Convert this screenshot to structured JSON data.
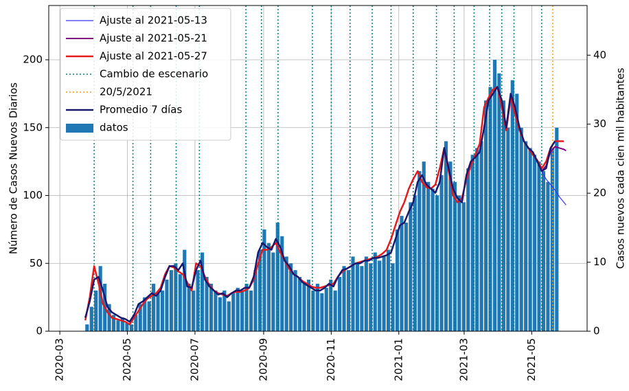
{
  "chart_data": {
    "type": "bar",
    "ylabel": "Número de Casos Nuevos Diarios",
    "y2label": "Casos nuevos cada cien mil habitantes",
    "xlim": [
      "2020-02-20",
      "2021-06-20"
    ],
    "xticks": [
      "2020-03",
      "2020-05",
      "2020-07",
      "2020-09",
      "2020-11",
      "2021-01",
      "2021-03",
      "2021-05"
    ],
    "ylim": [
      0,
      240
    ],
    "yticks": [
      0,
      50,
      100,
      150,
      200
    ],
    "y2lim": [
      0,
      47.2
    ],
    "y2ticks": [
      0,
      10,
      20,
      30,
      40
    ],
    "grid": true,
    "legend": "upper left",
    "bars": {
      "name": "datos",
      "color": "#1f77b4",
      "x": [
        "2020-03-24",
        "2020-03-28",
        "2020-04-01",
        "2020-04-05",
        "2020-04-09",
        "2020-04-13",
        "2020-04-17",
        "2020-04-21",
        "2020-04-25",
        "2020-04-29",
        "2020-05-03",
        "2020-05-07",
        "2020-05-11",
        "2020-05-15",
        "2020-05-19",
        "2020-05-23",
        "2020-05-27",
        "2020-05-31",
        "2020-06-04",
        "2020-06-08",
        "2020-06-12",
        "2020-06-16",
        "2020-06-20",
        "2020-06-24",
        "2020-06-28",
        "2020-07-02",
        "2020-07-06",
        "2020-07-10",
        "2020-07-14",
        "2020-07-18",
        "2020-07-22",
        "2020-07-26",
        "2020-07-30",
        "2020-08-03",
        "2020-08-07",
        "2020-08-11",
        "2020-08-15",
        "2020-08-19",
        "2020-08-23",
        "2020-08-27",
        "2020-08-31",
        "2020-09-04",
        "2020-09-08",
        "2020-09-12",
        "2020-09-16",
        "2020-09-20",
        "2020-09-24",
        "2020-09-28",
        "2020-10-02",
        "2020-10-06",
        "2020-10-10",
        "2020-10-14",
        "2020-10-18",
        "2020-10-22",
        "2020-10-26",
        "2020-10-30",
        "2020-11-03",
        "2020-11-07",
        "2020-11-11",
        "2020-11-15",
        "2020-11-19",
        "2020-11-23",
        "2020-11-27",
        "2020-12-01",
        "2020-12-05",
        "2020-12-09",
        "2020-12-13",
        "2020-12-17",
        "2020-12-21",
        "2020-12-25",
        "2020-12-29",
        "2021-01-02",
        "2021-01-06",
        "2021-01-10",
        "2021-01-14",
        "2021-01-18",
        "2021-01-22",
        "2021-01-26",
        "2021-01-30",
        "2021-02-03",
        "2021-02-07",
        "2021-02-11",
        "2021-02-15",
        "2021-02-19",
        "2021-02-23",
        "2021-02-27",
        "2021-03-03",
        "2021-03-07",
        "2021-03-11",
        "2021-03-15",
        "2021-03-19",
        "2021-03-23",
        "2021-03-27",
        "2021-03-31",
        "2021-04-04",
        "2021-04-08",
        "2021-04-12",
        "2021-04-16",
        "2021-04-20",
        "2021-04-24",
        "2021-04-28",
        "2021-05-02",
        "2021-05-06",
        "2021-05-10",
        "2021-05-14",
        "2021-05-18",
        "2021-05-22"
      ],
      "values": [
        5,
        18,
        30,
        48,
        35,
        20,
        12,
        8,
        10,
        6,
        5,
        12,
        20,
        25,
        22,
        35,
        28,
        30,
        38,
        45,
        50,
        42,
        60,
        35,
        30,
        45,
        58,
        40,
        35,
        30,
        25,
        30,
        22,
        28,
        32,
        30,
        35,
        30,
        45,
        60,
        75,
        65,
        58,
        80,
        70,
        55,
        50,
        45,
        40,
        35,
        38,
        30,
        35,
        28,
        32,
        38,
        30,
        40,
        48,
        45,
        55,
        50,
        48,
        55,
        50,
        58,
        52,
        55,
        60,
        50,
        75,
        85,
        80,
        95,
        100,
        118,
        125,
        110,
        105,
        100,
        115,
        140,
        125,
        110,
        100,
        95,
        120,
        130,
        135,
        140,
        170,
        180,
        200,
        190,
        170,
        150,
        185,
        175,
        150,
        140,
        135,
        130,
        125,
        118,
        110,
        135,
        150
      ]
    },
    "series": [
      {
        "name": "Ajuste al 2021-05-13",
        "color": "#3333ff",
        "width": 1.2,
        "x": [
          "2021-05-06",
          "2021-05-10",
          "2021-05-14",
          "2021-05-18",
          "2021-05-22",
          "2021-05-26",
          "2021-05-30",
          "2021-06-01"
        ],
        "values": [
          125,
          118,
          112,
          108,
          104,
          99,
          95,
          93
        ]
      },
      {
        "name": "Ajuste al 2021-05-21",
        "color": "#800080",
        "width": 2,
        "x": [
          "2021-05-10",
          "2021-05-14",
          "2021-05-18",
          "2021-05-22",
          "2021-05-26",
          "2021-05-30",
          "2021-06-01"
        ],
        "values": [
          118,
          122,
          132,
          136,
          135,
          134,
          133
        ]
      },
      {
        "name": "Ajuste al 2021-05-27",
        "color": "#e41a1c",
        "width": 2.5,
        "x": [
          "2020-03-24",
          "2020-03-28",
          "2020-04-01",
          "2020-04-05",
          "2020-04-09",
          "2020-04-13",
          "2020-04-17",
          "2020-04-21",
          "2020-04-25",
          "2020-04-29",
          "2020-05-03",
          "2020-05-07",
          "2020-05-11",
          "2020-05-15",
          "2020-05-19",
          "2020-05-23",
          "2020-05-27",
          "2020-05-31",
          "2020-06-04",
          "2020-06-08",
          "2020-06-12",
          "2020-06-16",
          "2020-06-20",
          "2020-06-24",
          "2020-06-28",
          "2020-07-02",
          "2020-07-06",
          "2020-07-10",
          "2020-07-14",
          "2020-07-18",
          "2020-07-22",
          "2020-07-26",
          "2020-07-30",
          "2020-08-03",
          "2020-08-07",
          "2020-08-11",
          "2020-08-15",
          "2020-08-19",
          "2020-08-23",
          "2020-08-27",
          "2020-08-31",
          "2020-09-04",
          "2020-09-08",
          "2020-09-12",
          "2020-09-16",
          "2020-09-20",
          "2020-09-24",
          "2020-09-28",
          "2020-10-02",
          "2020-10-06",
          "2020-10-10",
          "2020-10-14",
          "2020-10-18",
          "2020-10-22",
          "2020-10-26",
          "2020-10-30",
          "2020-11-03",
          "2020-11-07",
          "2020-11-11",
          "2020-11-15",
          "2020-11-19",
          "2020-11-23",
          "2020-11-27",
          "2020-12-01",
          "2020-12-05",
          "2020-12-09",
          "2020-12-13",
          "2020-12-17",
          "2020-12-21",
          "2020-12-25",
          "2020-12-29",
          "2021-01-02",
          "2021-01-06",
          "2021-01-10",
          "2021-01-14",
          "2021-01-18",
          "2021-01-22",
          "2021-01-26",
          "2021-01-30",
          "2021-02-03",
          "2021-02-07",
          "2021-02-11",
          "2021-02-15",
          "2021-02-19",
          "2021-02-23",
          "2021-02-27",
          "2021-03-03",
          "2021-03-07",
          "2021-03-11",
          "2021-03-15",
          "2021-03-19",
          "2021-03-23",
          "2021-03-27",
          "2021-03-31",
          "2021-04-04",
          "2021-04-08",
          "2021-04-12",
          "2021-04-16",
          "2021-04-20",
          "2021-04-24",
          "2021-04-28",
          "2021-05-02",
          "2021-05-06",
          "2021-05-10",
          "2021-05-14",
          "2021-05-18",
          "2021-05-22",
          "2021-05-26",
          "2021-05-30"
        ],
        "values": [
          8,
          25,
          48,
          35,
          20,
          14,
          10,
          9,
          8,
          7,
          5,
          10,
          15,
          20,
          24,
          26,
          28,
          32,
          42,
          48,
          47,
          44,
          42,
          36,
          30,
          50,
          48,
          40,
          34,
          30,
          28,
          27,
          26,
          28,
          29,
          29,
          30,
          32,
          38,
          50,
          60,
          60,
          62,
          65,
          58,
          52,
          46,
          42,
          40,
          37,
          35,
          33,
          32,
          32,
          33,
          34,
          35,
          40,
          44,
          46,
          48,
          50,
          51,
          52,
          53,
          54,
          55,
          57,
          60,
          68,
          78,
          88,
          95,
          105,
          112,
          118,
          110,
          106,
          105,
          108,
          120,
          135,
          118,
          100,
          95,
          98,
          112,
          122,
          130,
          138,
          165,
          172,
          178,
          180,
          165,
          148,
          172,
          160,
          148,
          140,
          135,
          130,
          126,
          120,
          125,
          135,
          140,
          140,
          140
        ]
      },
      {
        "name": "Promedio 7 días",
        "color": "#191970",
        "width": 2.5,
        "x": [
          "2020-03-24",
          "2020-03-28",
          "2020-04-01",
          "2020-04-05",
          "2020-04-09",
          "2020-04-13",
          "2020-04-17",
          "2020-04-21",
          "2020-04-25",
          "2020-04-29",
          "2020-05-03",
          "2020-05-07",
          "2020-05-11",
          "2020-05-15",
          "2020-05-19",
          "2020-05-23",
          "2020-05-27",
          "2020-05-31",
          "2020-06-04",
          "2020-06-08",
          "2020-06-12",
          "2020-06-16",
          "2020-06-20",
          "2020-06-24",
          "2020-06-28",
          "2020-07-02",
          "2020-07-06",
          "2020-07-10",
          "2020-07-14",
          "2020-07-18",
          "2020-07-22",
          "2020-07-26",
          "2020-07-30",
          "2020-08-03",
          "2020-08-07",
          "2020-08-11",
          "2020-08-15",
          "2020-08-19",
          "2020-08-23",
          "2020-08-27",
          "2020-08-31",
          "2020-09-04",
          "2020-09-08",
          "2020-09-12",
          "2020-09-16",
          "2020-09-20",
          "2020-09-24",
          "2020-09-28",
          "2020-10-02",
          "2020-10-06",
          "2020-10-10",
          "2020-10-14",
          "2020-10-18",
          "2020-10-22",
          "2020-10-26",
          "2020-10-30",
          "2020-11-03",
          "2020-11-07",
          "2020-11-11",
          "2020-11-15",
          "2020-11-19",
          "2020-11-23",
          "2020-11-27",
          "2020-12-01",
          "2020-12-05",
          "2020-12-09",
          "2020-12-13",
          "2020-12-17",
          "2020-12-21",
          "2020-12-25",
          "2020-12-29",
          "2021-01-02",
          "2021-01-06",
          "2021-01-10",
          "2021-01-14",
          "2021-01-18",
          "2021-01-22",
          "2021-01-26",
          "2021-01-30",
          "2021-02-03",
          "2021-02-07",
          "2021-02-11",
          "2021-02-15",
          "2021-02-19",
          "2021-02-23",
          "2021-02-27",
          "2021-03-03",
          "2021-03-07",
          "2021-03-11",
          "2021-03-15",
          "2021-03-19",
          "2021-03-23",
          "2021-03-27",
          "2021-03-31",
          "2021-04-04",
          "2021-04-08",
          "2021-04-12",
          "2021-04-16",
          "2021-04-20",
          "2021-04-24",
          "2021-04-28",
          "2021-05-02",
          "2021-05-06",
          "2021-05-10",
          "2021-05-14",
          "2021-05-18",
          "2021-05-22"
        ],
        "values": [
          10,
          22,
          38,
          40,
          30,
          18,
          14,
          12,
          10,
          9,
          7,
          12,
          20,
          22,
          25,
          28,
          26,
          30,
          40,
          48,
          48,
          45,
          50,
          33,
          32,
          45,
          52,
          38,
          33,
          30,
          27,
          28,
          25,
          28,
          30,
          30,
          32,
          32,
          40,
          58,
          65,
          62,
          60,
          68,
          62,
          52,
          48,
          42,
          40,
          36,
          34,
          32,
          30,
          30,
          32,
          35,
          33,
          40,
          45,
          46,
          48,
          50,
          50,
          52,
          52,
          54,
          54,
          55,
          56,
          58,
          68,
          78,
          80,
          88,
          95,
          110,
          115,
          108,
          105,
          102,
          110,
          135,
          120,
          105,
          98,
          95,
          115,
          125,
          128,
          132,
          150,
          170,
          175,
          180,
          170,
          150,
          175,
          165,
          150,
          140,
          135,
          132,
          125,
          118,
          120,
          135,
          140
        ]
      }
    ],
    "vlines": [
      {
        "name": "Cambio de escenario",
        "color": "#008080",
        "x": [
          "2020-04-01",
          "2020-05-06",
          "2020-05-22",
          "2020-06-14",
          "2020-07-05",
          "2020-08-16",
          "2020-08-30",
          "2020-09-14",
          "2020-10-15",
          "2020-11-01",
          "2020-11-18",
          "2020-12-08",
          "2020-12-25",
          "2021-01-14",
          "2021-02-04",
          "2021-02-20",
          "2021-03-10",
          "2021-03-24",
          "2021-04-04",
          "2021-04-15",
          "2021-05-10"
        ]
      },
      {
        "name": "20/5/2021",
        "color": "#ff9900",
        "x": [
          "2021-05-20"
        ]
      }
    ]
  }
}
